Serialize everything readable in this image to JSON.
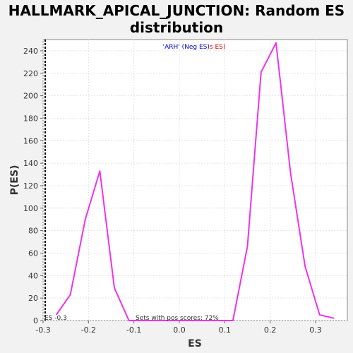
{
  "chart_data": {
    "type": "line",
    "title_line1": "HALLMARK_APICAL_JUNCTION: Random ES",
    "title_line2": "distribution",
    "xlabel": "ES",
    "ylabel": "P(ES)",
    "xlim": [
      -0.3,
      0.37
    ],
    "ylim": [
      0,
      250
    ],
    "x_ticks": [
      -0.3,
      -0.2,
      -0.1,
      0.0,
      0.1,
      0.2,
      0.3
    ],
    "x_tick_labels": [
      "-0.3",
      "-0.2",
      "-0.1",
      "0.0",
      "0.1",
      "0.2",
      "0.3"
    ],
    "y_ticks": [
      0,
      20,
      40,
      60,
      80,
      100,
      120,
      140,
      160,
      180,
      200,
      220,
      240
    ],
    "y_tick_labels": [
      "0",
      "20",
      "40",
      "60",
      "80",
      "100",
      "120",
      "140",
      "160",
      "180",
      "200",
      "220",
      "240"
    ],
    "grid": true,
    "series": [
      {
        "color": "#ee33ee",
        "x": [
          -0.271,
          -0.24,
          -0.207,
          -0.175,
          -0.143,
          -0.111,
          -0.079,
          0.0,
          0.086,
          0.118,
          0.15,
          0.18,
          0.213,
          0.245,
          0.277,
          0.309,
          0.341
        ],
        "y": [
          5,
          23,
          90,
          133,
          29,
          0,
          0,
          0,
          0,
          0,
          66,
          221,
          247,
          131,
          48,
          5,
          2
        ]
      }
    ],
    "es_marker": {
      "x": -0.3,
      "label": "ES -0.3"
    },
    "annotation": "Sets with pos scores: 72%",
    "legend": {
      "part1": "'ARH' (Neg ES)",
      "part2": "s ES)",
      "part1_color": "#0000cc",
      "part2_color": "#dd0000"
    }
  }
}
